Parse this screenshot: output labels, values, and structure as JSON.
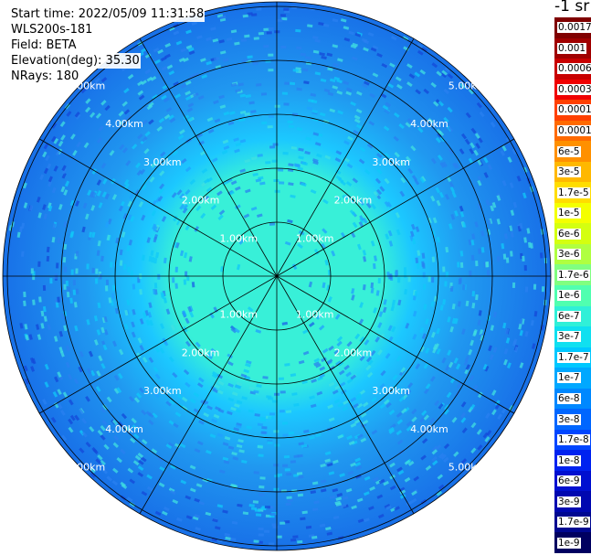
{
  "info": {
    "start_time": "Start time: 2022/05/09 11:31:58",
    "instrument": "WLS200s-181",
    "field": "Field: BETA",
    "elevation": "Elevation(deg): 35.30",
    "nrays": "NRays: 180"
  },
  "colorbar": {
    "unit_title": "-1 sr",
    "levels": [
      "0.0017",
      "0.001",
      "0.0006",
      "0.0003",
      "0.00017",
      "0.0001",
      "6e-5",
      "3e-5",
      "1.7e-5",
      "1e-5",
      "6e-6",
      "3e-6",
      "1.7e-6",
      "1e-6",
      "6e-7",
      "3e-7",
      "1.7e-7",
      "1e-7",
      "6e-8",
      "3e-8",
      "1.7e-8",
      "1e-8",
      "6e-9",
      "3e-9",
      "1.7e-9",
      "1e-9"
    ],
    "colors": [
      "#800000",
      "#a00000",
      "#c80000",
      "#f00000",
      "#ff4000",
      "#ff6a00",
      "#ff9000",
      "#ffb800",
      "#ffdd00",
      "#f4ff00",
      "#d4ff10",
      "#b0ff40",
      "#80ff80",
      "#50ffb0",
      "#30f0d8",
      "#10e0f0",
      "#00c8ff",
      "#00a8ff",
      "#0088ff",
      "#0066ff",
      "#0046ff",
      "#0022f0",
      "#0010d0",
      "#0008b0",
      "#000890",
      "#000060"
    ]
  },
  "ring_labels": [
    "1.00km",
    "2.00km",
    "3.00km",
    "4.00km",
    "5.00km"
  ],
  "colors": {
    "near": "#38f0d8",
    "mid": "#1cc8ff",
    "far": "#2098f0",
    "outer": "#1870e8",
    "grid": "#000000"
  }
}
